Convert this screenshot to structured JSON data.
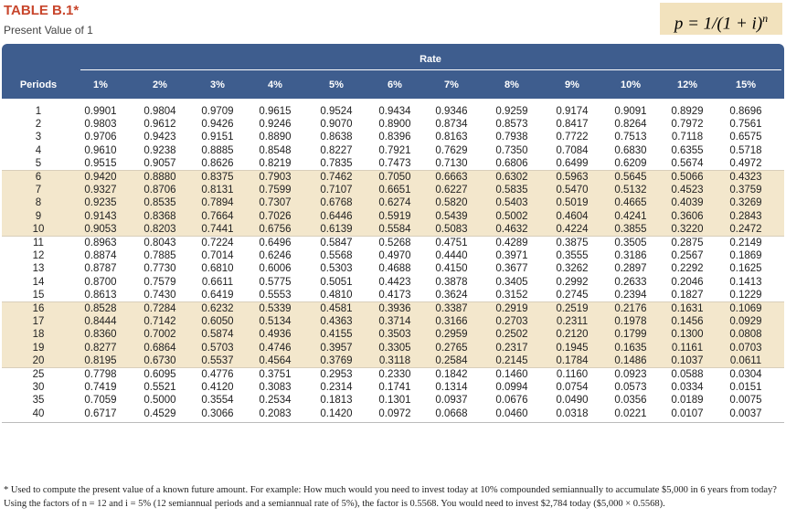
{
  "header": {
    "title": "TABLE B.1*",
    "subtitle": "Present Value of 1",
    "formula": {
      "base": "p = 1/(1 + i)",
      "exponent": "n"
    }
  },
  "table": {
    "periods_header": "Periods",
    "rate_header": "Rate",
    "rates": [
      "1%",
      "2%",
      "3%",
      "4%",
      "5%",
      "6%",
      "7%",
      "8%",
      "9%",
      "10%",
      "12%",
      "15%"
    ],
    "rows": [
      [
        "1",
        "0.9901",
        "0.9804",
        "0.9709",
        "0.9615",
        "0.9524",
        "0.9434",
        "0.9346",
        "0.9259",
        "0.9174",
        "0.9091",
        "0.8929",
        "0.8696"
      ],
      [
        "2",
        "0.9803",
        "0.9612",
        "0.9426",
        "0.9246",
        "0.9070",
        "0.8900",
        "0.8734",
        "0.8573",
        "0.8417",
        "0.8264",
        "0.7972",
        "0.7561"
      ],
      [
        "3",
        "0.9706",
        "0.9423",
        "0.9151",
        "0.8890",
        "0.8638",
        "0.8396",
        "0.8163",
        "0.7938",
        "0.7722",
        "0.7513",
        "0.7118",
        "0.6575"
      ],
      [
        "4",
        "0.9610",
        "0.9238",
        "0.8885",
        "0.8548",
        "0.8227",
        "0.7921",
        "0.7629",
        "0.7350",
        "0.7084",
        "0.6830",
        "0.6355",
        "0.5718"
      ],
      [
        "5",
        "0.9515",
        "0.9057",
        "0.8626",
        "0.8219",
        "0.7835",
        "0.7473",
        "0.7130",
        "0.6806",
        "0.6499",
        "0.6209",
        "0.5674",
        "0.4972"
      ],
      [
        "6",
        "0.9420",
        "0.8880",
        "0.8375",
        "0.7903",
        "0.7462",
        "0.7050",
        "0.6663",
        "0.6302",
        "0.5963",
        "0.5645",
        "0.5066",
        "0.4323"
      ],
      [
        "7",
        "0.9327",
        "0.8706",
        "0.8131",
        "0.7599",
        "0.7107",
        "0.6651",
        "0.6227",
        "0.5835",
        "0.5470",
        "0.5132",
        "0.4523",
        "0.3759"
      ],
      [
        "8",
        "0.9235",
        "0.8535",
        "0.7894",
        "0.7307",
        "0.6768",
        "0.6274",
        "0.5820",
        "0.5403",
        "0.5019",
        "0.4665",
        "0.4039",
        "0.3269"
      ],
      [
        "9",
        "0.9143",
        "0.8368",
        "0.7664",
        "0.7026",
        "0.6446",
        "0.5919",
        "0.5439",
        "0.5002",
        "0.4604",
        "0.4241",
        "0.3606",
        "0.2843"
      ],
      [
        "10",
        "0.9053",
        "0.8203",
        "0.7441",
        "0.6756",
        "0.6139",
        "0.5584",
        "0.5083",
        "0.4632",
        "0.4224",
        "0.3855",
        "0.3220",
        "0.2472"
      ],
      [
        "11",
        "0.8963",
        "0.8043",
        "0.7224",
        "0.6496",
        "0.5847",
        "0.5268",
        "0.4751",
        "0.4289",
        "0.3875",
        "0.3505",
        "0.2875",
        "0.2149"
      ],
      [
        "12",
        "0.8874",
        "0.7885",
        "0.7014",
        "0.6246",
        "0.5568",
        "0.4970",
        "0.4440",
        "0.3971",
        "0.3555",
        "0.3186",
        "0.2567",
        "0.1869"
      ],
      [
        "13",
        "0.8787",
        "0.7730",
        "0.6810",
        "0.6006",
        "0.5303",
        "0.4688",
        "0.4150",
        "0.3677",
        "0.3262",
        "0.2897",
        "0.2292",
        "0.1625"
      ],
      [
        "14",
        "0.8700",
        "0.7579",
        "0.6611",
        "0.5775",
        "0.5051",
        "0.4423",
        "0.3878",
        "0.3405",
        "0.2992",
        "0.2633",
        "0.2046",
        "0.1413"
      ],
      [
        "15",
        "0.8613",
        "0.7430",
        "0.6419",
        "0.5553",
        "0.4810",
        "0.4173",
        "0.3624",
        "0.3152",
        "0.2745",
        "0.2394",
        "0.1827",
        "0.1229"
      ],
      [
        "16",
        "0.8528",
        "0.7284",
        "0.6232",
        "0.5339",
        "0.4581",
        "0.3936",
        "0.3387",
        "0.2919",
        "0.2519",
        "0.2176",
        "0.1631",
        "0.1069"
      ],
      [
        "17",
        "0.8444",
        "0.7142",
        "0.6050",
        "0.5134",
        "0.4363",
        "0.3714",
        "0.3166",
        "0.2703",
        "0.2311",
        "0.1978",
        "0.1456",
        "0.0929"
      ],
      [
        "18",
        "0.8360",
        "0.7002",
        "0.5874",
        "0.4936",
        "0.4155",
        "0.3503",
        "0.2959",
        "0.2502",
        "0.2120",
        "0.1799",
        "0.1300",
        "0.0808"
      ],
      [
        "19",
        "0.8277",
        "0.6864",
        "0.5703",
        "0.4746",
        "0.3957",
        "0.3305",
        "0.2765",
        "0.2317",
        "0.1945",
        "0.1635",
        "0.1161",
        "0.0703"
      ],
      [
        "20",
        "0.8195",
        "0.6730",
        "0.5537",
        "0.4564",
        "0.3769",
        "0.3118",
        "0.2584",
        "0.2145",
        "0.1784",
        "0.1486",
        "0.1037",
        "0.0611"
      ],
      [
        "25",
        "0.7798",
        "0.6095",
        "0.4776",
        "0.3751",
        "0.2953",
        "0.2330",
        "0.1842",
        "0.1460",
        "0.1160",
        "0.0923",
        "0.0588",
        "0.0304"
      ],
      [
        "30",
        "0.7419",
        "0.5521",
        "0.4120",
        "0.3083",
        "0.2314",
        "0.1741",
        "0.1314",
        "0.0994",
        "0.0754",
        "0.0573",
        "0.0334",
        "0.0151"
      ],
      [
        "35",
        "0.7059",
        "0.5000",
        "0.3554",
        "0.2534",
        "0.1813",
        "0.1301",
        "0.0937",
        "0.0676",
        "0.0490",
        "0.0356",
        "0.0189",
        "0.0075"
      ],
      [
        "40",
        "0.6717",
        "0.4529",
        "0.3066",
        "0.2083",
        "0.1420",
        "0.0972",
        "0.0668",
        "0.0460",
        "0.0318",
        "0.0221",
        "0.0107",
        "0.0037"
      ]
    ]
  },
  "footnote": "* Used to compute the present value of a known future amount. For example: How much would you need to invest today at 10% compounded semiannually to accumulate $5,000 in 6 years from today? Using the factors of n = 12 and i = 5% (12 semiannual periods and a semiannual rate of 5%), the factor is 0.5568. You would need to invest $2,784 today ($5,000 × 0.5568)."
}
